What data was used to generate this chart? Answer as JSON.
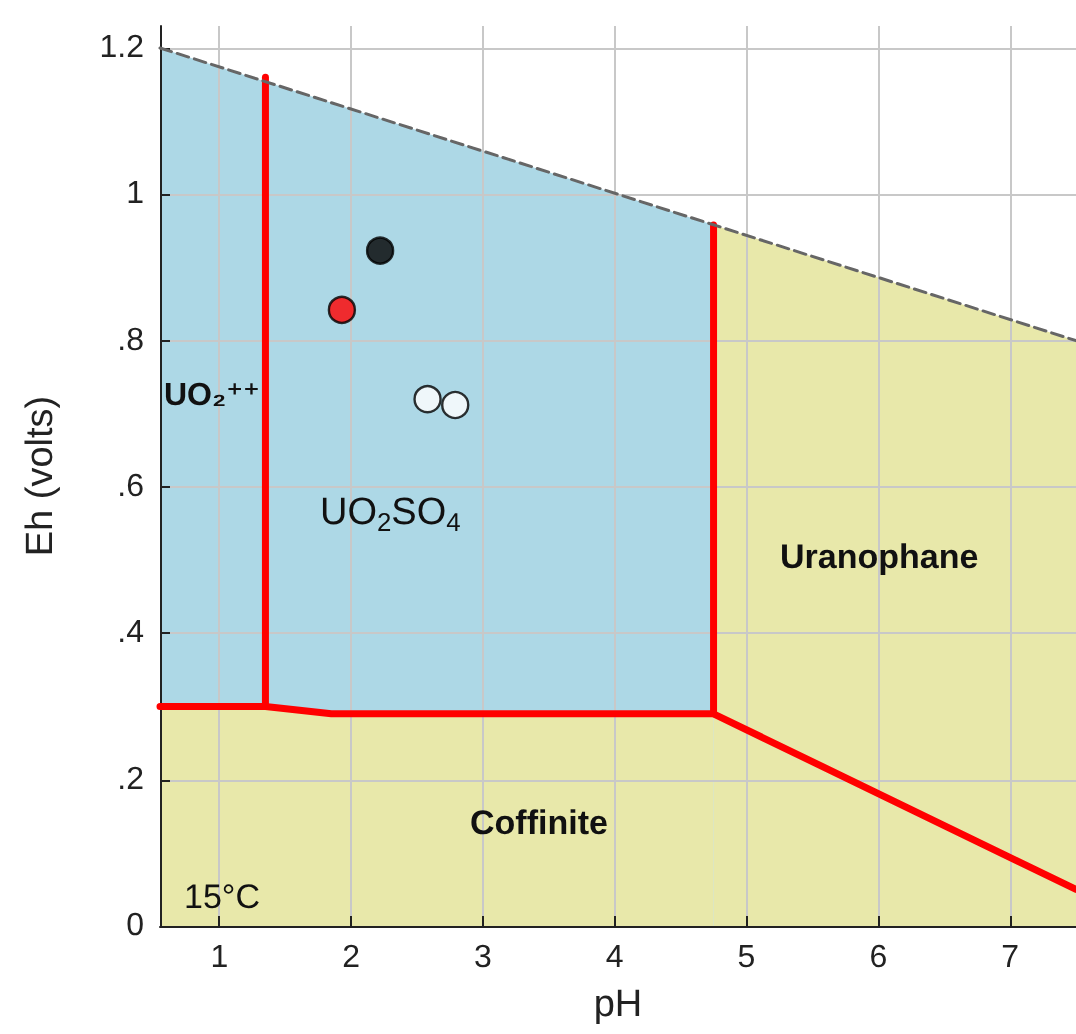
{
  "chart_data": {
    "type": "line",
    "xlabel": "pH",
    "ylabel": "Eh (volts)",
    "xlim": [
      0.55,
      7.5
    ],
    "ylim": [
      0,
      1.23
    ],
    "xticks": [
      1,
      2,
      3,
      4,
      5,
      6,
      7
    ],
    "yticks": [
      {
        "value": 0,
        "label": "0"
      },
      {
        "value": 0.2,
        "label": ".2"
      },
      {
        "value": 0.4,
        "label": ".4"
      },
      {
        "value": 0.6,
        "label": ".6"
      },
      {
        "value": 0.8,
        "label": ".8"
      },
      {
        "value": 1,
        "label": "1"
      },
      {
        "value": 1.2,
        "label": "1.2"
      }
    ],
    "grid": true,
    "series": [
      {
        "type": "area",
        "color": "#e8e8aa",
        "x": [
          0.55,
          1.35,
          1.85,
          4.75
        ],
        "values": [
          0.3,
          0.3,
          0.29,
          0.29
        ]
      },
      {
        "type": "area",
        "color": "#add8e6",
        "x": [
          0.55,
          4.75
        ],
        "values": [
          1.2,
          0.958
        ]
      },
      {
        "type": "area",
        "color": "#e8e8aa",
        "x": [
          4.75,
          7.5
        ],
        "values": [
          0.958,
          0.8
        ]
      },
      {
        "type": "line",
        "color": "#ff0000",
        "x": [
          0.55,
          1.35,
          1.85,
          4.75,
          7.5
        ],
        "values": [
          0.3,
          0.3,
          0.29,
          0.29,
          0.05
        ]
      },
      {
        "type": "line",
        "color": "#ff0000",
        "x": [
          1.35,
          1.35
        ],
        "values": [
          0.3,
          1.16
        ]
      },
      {
        "type": "line",
        "color": "#ff0000",
        "x": [
          4.75,
          4.75
        ],
        "values": [
          0.29,
          0.958
        ]
      },
      {
        "color": "#666666",
        "line_style": "dashed",
        "x": [
          0.55,
          7.5
        ],
        "values": [
          1.2,
          0.8
        ]
      },
      {
        "type": "scatter",
        "marker": "circle",
        "x": [
          2.22,
          1.93,
          2.58,
          2.79
        ],
        "values": [
          0.923,
          0.842,
          0.72,
          0.712
        ],
        "colors": [
          "#000000",
          "#ff0000",
          "#ffffff",
          "#ffffff"
        ]
      }
    ],
    "annotations": [
      "UO₂⁺⁺",
      "UO$_{2}$SO$_{4}$",
      "Uranophane",
      "Coffinite",
      "15°C"
    ]
  }
}
